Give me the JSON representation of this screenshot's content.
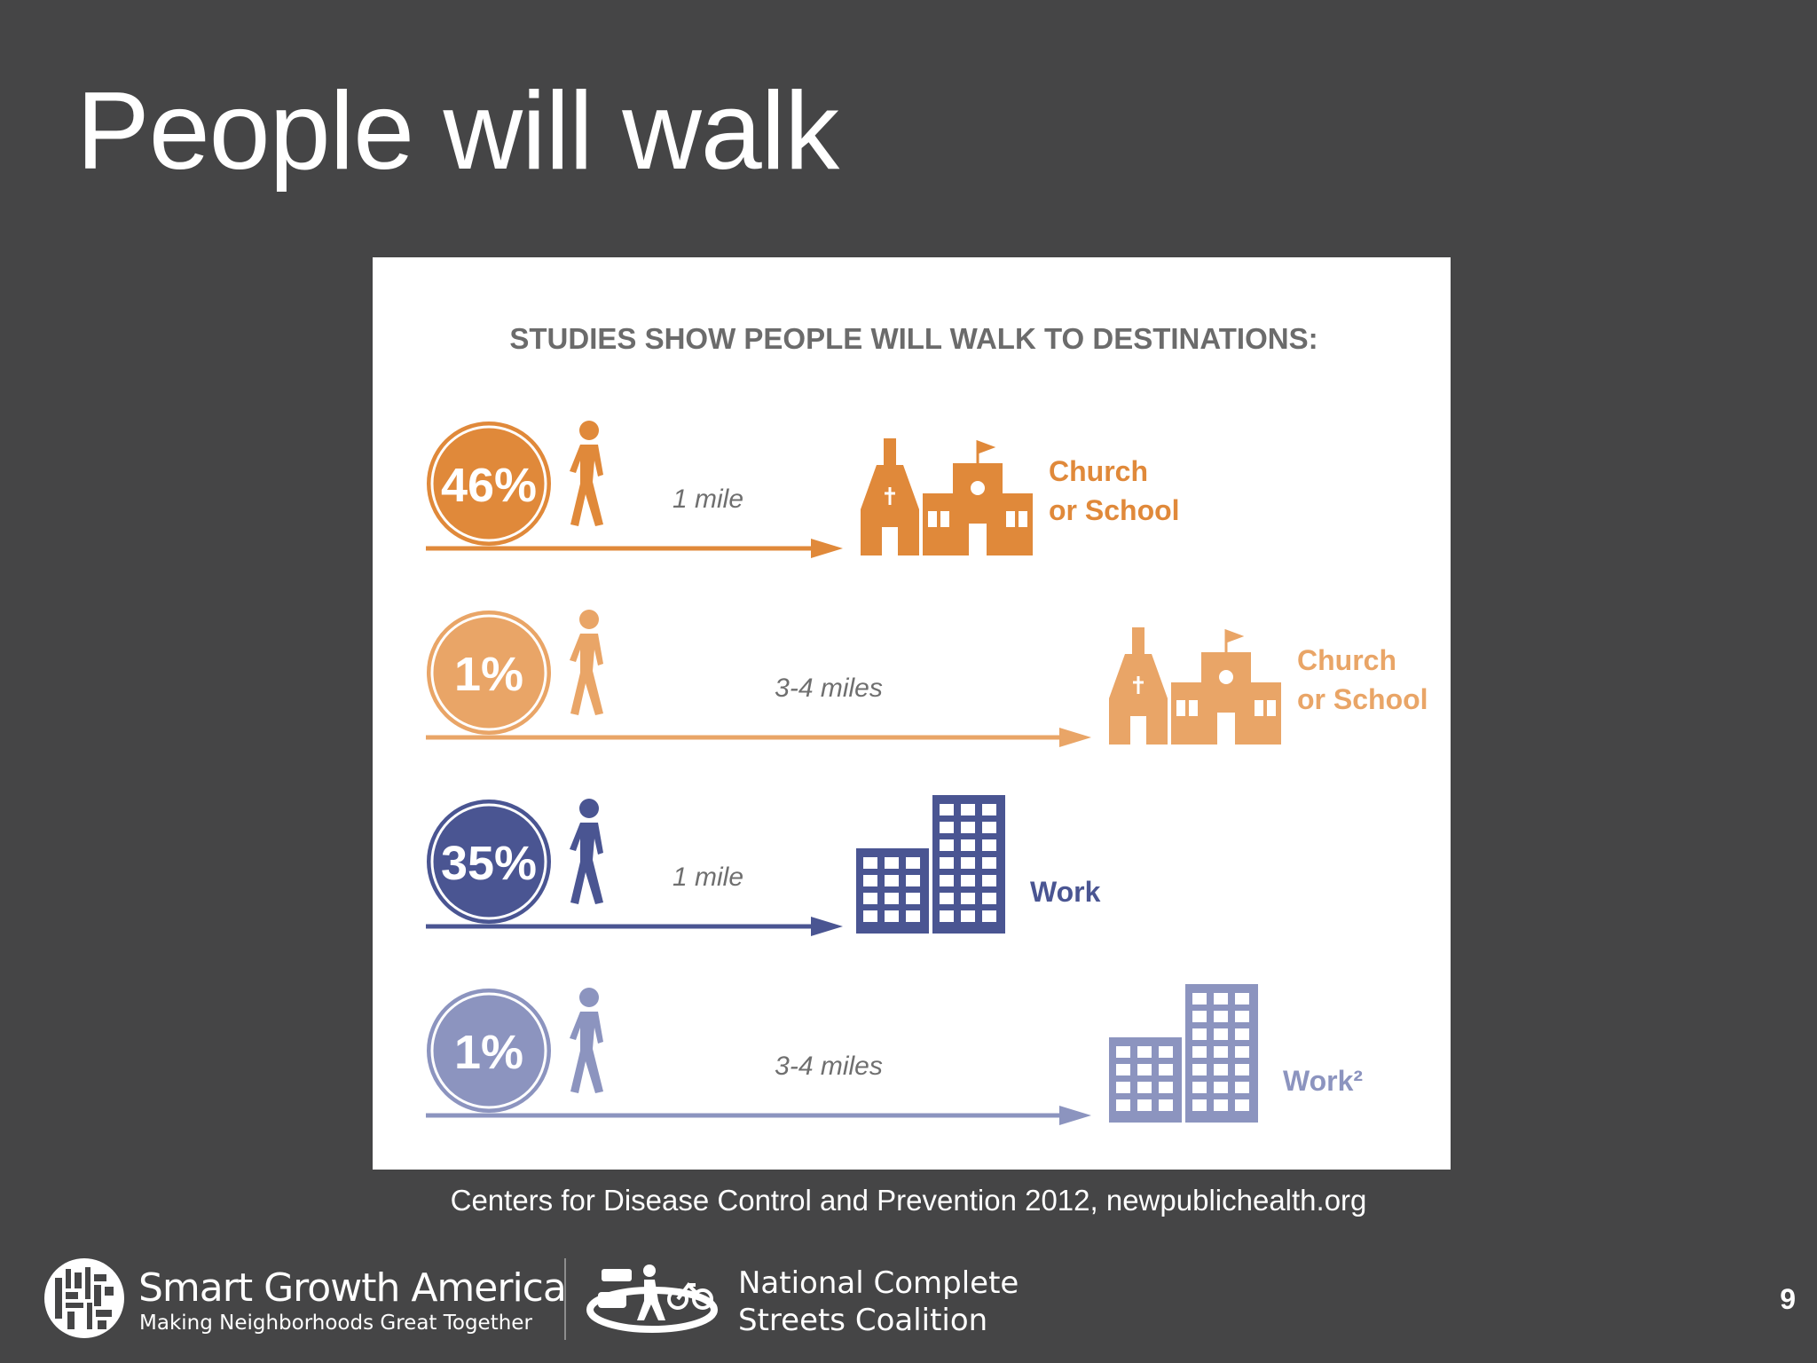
{
  "slide": {
    "title": "People will walk",
    "caption": "Centers for Disease Control and Prevention 2012, newpublichealth.org",
    "page_number": "9"
  },
  "infographic": {
    "heading": "STUDIES SHOW PEOPLE WILL WALK TO DESTINATIONS:",
    "rows": [
      {
        "percent": "46%",
        "distance": "1 mile",
        "destination_line1": "Church",
        "destination_line2": "or School",
        "color": "#e0893a",
        "building": "church-school"
      },
      {
        "percent": "1%",
        "distance": "3-4 miles",
        "destination_line1": "Church",
        "destination_line2": "or School",
        "color": "#e9a567",
        "building": "church-school"
      },
      {
        "percent": "35%",
        "distance": "1 mile",
        "destination_line1": "Work",
        "destination_line2": "",
        "color": "#4a5592",
        "building": "office"
      },
      {
        "percent": "1%",
        "distance": "3-4 miles",
        "destination_line1": "Work²",
        "destination_line2": "",
        "color": "#8c94bf",
        "building": "office"
      }
    ]
  },
  "footer": {
    "sga_name": "Smart Growth America",
    "sga_tagline": "Making Neighborhoods Great Together",
    "ncsc_line1": "National Complete",
    "ncsc_line2": "Streets Coalition"
  }
}
